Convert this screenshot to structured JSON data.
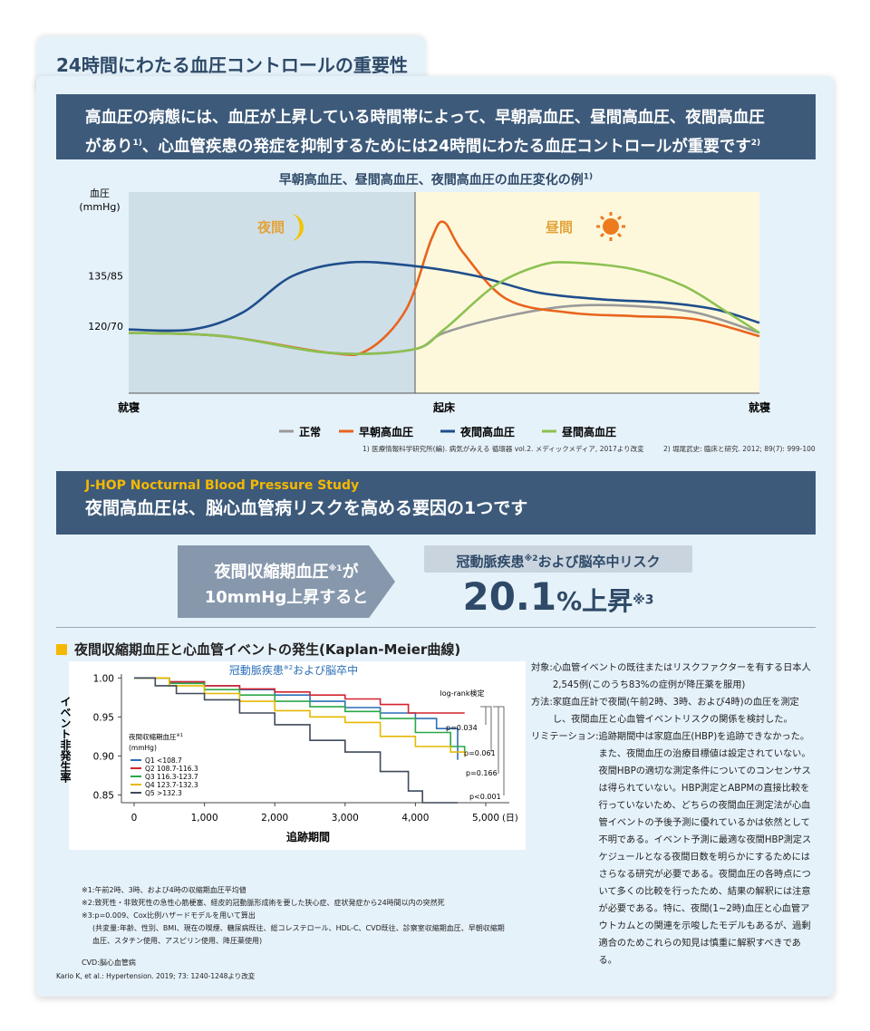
{
  "header": {
    "tab_title": "24時間にわたる血圧コントロールの重要性",
    "banner_line1": "高血圧の病態には、血圧が上昇している時間帯によって、早朝高血圧、昼間高血圧、夜間高血圧",
    "banner_line2_a": "があり",
    "banner_ref1": "1)",
    "banner_line2_b": "、心血管疾患の発症を抑制するためには24時間にわたる血圧コントロールが重要です",
    "banner_ref2": "2)"
  },
  "bp_chart": {
    "title": "早朝高血圧、昼間高血圧、夜間高血圧の血圧変化の例",
    "title_ref": "1)",
    "ylabel_line1": "血圧",
    "ylabel_line2": "(mmHg)",
    "night_label": "夜間",
    "day_label": "昼間",
    "footnote1": "1) 医療情報科学研究所(編). 病気がみえる 循環器 vol.2. メディックメディア, 2017より改変",
    "footnote2": "2) 堀尾武史: 臨床と研究. 2012; 89(7): 999-1002"
  },
  "study": {
    "subtitle": "J-HOP Nocturnal Blood Pressure Study",
    "title": "夜間高血圧は、脳心血管病リスクを高める要因の1つです",
    "arrow_line1": "夜間収縮期血圧",
    "arrow_ref": "※1",
    "arrow_line1_tail": "が",
    "arrow_line2": "10mmHg上昇すると",
    "risk_label_a": "冠動脈疾患",
    "risk_ref": "※2",
    "risk_label_b": "および脳卒中リスク",
    "risk_number": "20.1",
    "risk_suffix": "%上昇",
    "risk_suffix_ref": "※3"
  },
  "km": {
    "heading": "夜間収縮期血圧と心血管イベントの発生(Kaplan-Meier曲線)",
    "inner_title": "冠動脈疾患",
    "inner_title_ref": "※2",
    "inner_title_tail": "および脳卒中",
    "ylabel": "イベント非発生率",
    "xlabel": "追跡期間",
    "x_unit": "(日)",
    "logrank": "log-rank検定",
    "legend_title": "夜間収縮期血圧",
    "legend_title_ref": "※1",
    "legend_unit": "(mmHg)"
  },
  "description": {
    "rows": [
      {
        "label": "対象:",
        "text": "心血管イベントの既往またはリスクファクターを有する日本人2,545例(このうち83%の症例が降圧薬を服用)"
      },
      {
        "label": "方法:",
        "text": "家庭血圧計で夜間(午前2時、3時、および4時)の血圧を測定し、夜間血圧と心血管イベントリスクの関係を検討した。"
      },
      {
        "label": "リミテーション:",
        "text": "追跡期間中は家庭血圧(HBP)を追跡できなかった。また、夜間血圧の治療目標値は設定されていない。夜間HBPの適切な測定条件についてのコンセンサスは得られていない。HBP測定とABPMの直接比較を行っていないため、どちらの夜間血圧測定法が心血管イベントの予後予測に優れているかは依然として不明である。イベント予測に最適な夜間HBP測定スケジュールとなる夜間日数を明らかにするためにはさらなる研究が必要である。夜間血圧の各時点について多くの比較を行ったため、結果の解釈には注意が必要である。特に、夜間(1~2時)血圧と心血管アウトカムとの関連を示唆したモデルもあるが、過剰適合のためこれらの知見は慎重に解釈すべきである。"
      }
    ]
  },
  "notes": {
    "n1": "※1:午前2時、3時、および4時の収縮期血圧平均値",
    "n2": "※2:致死性・非致死性の急性心筋梗塞、経皮的冠動脈形成術を要した狭心症、症状発症から24時間以内の突然死",
    "n3": "※3:p=0.009、Cox比例ハザードモデルを用いて算出",
    "n3b": "(共変量:年齢、性別、BMI、現在の喫煙、糖尿病既往、総コレステロール、HDL-C、CVD既往、診察室収縮期血圧、早朝収縮期",
    "n3c": "血圧、スタチン使用、アスピリン使用、降圧薬使用)",
    "cvd": "CVD:脳心血管病",
    "citation": "Kario K, et al.: Hypertension. 2019; 73: 1240-1248より改変"
  },
  "chart_data": [
    {
      "type": "line",
      "title": "早朝高血圧、昼間高血圧、夜間高血圧の血圧変化の例",
      "ylabel": "血圧 (mmHg)",
      "y_ticks": [
        "135/85",
        "120/70"
      ],
      "x_ticks": [
        "就寝",
        "起床",
        "就寝"
      ],
      "x_domain": [
        0,
        1
      ],
      "y_domain": [
        100,
        160
      ],
      "colors": {
        "正常": "#9a9a9a",
        "早朝高血圧": "#e8641e",
        "夜間高血圧": "#1f4e8c",
        "昼間高血圧": "#8cc152"
      },
      "series": [
        {
          "name": "正常",
          "points": [
            [
              0,
              118
            ],
            [
              0.15,
              117
            ],
            [
              0.32,
              112
            ],
            [
              0.45,
              113
            ],
            [
              0.5,
              118
            ],
            [
              0.6,
              123
            ],
            [
              0.7,
              126
            ],
            [
              0.8,
              126
            ],
            [
              0.9,
              124
            ],
            [
              1,
              118
            ]
          ]
        },
        {
          "name": "早朝高血圧",
          "points": [
            [
              0,
              118
            ],
            [
              0.15,
              117
            ],
            [
              0.32,
              112
            ],
            [
              0.38,
              113
            ],
            [
              0.44,
              125
            ],
            [
              0.48,
              146
            ],
            [
              0.5,
              151
            ],
            [
              0.53,
              142
            ],
            [
              0.6,
              128
            ],
            [
              0.7,
              124
            ],
            [
              0.8,
              123
            ],
            [
              0.9,
              122
            ],
            [
              1,
              117
            ]
          ]
        },
        {
          "name": "夜間高血圧",
          "points": [
            [
              0,
              119
            ],
            [
              0.1,
              119
            ],
            [
              0.18,
              124
            ],
            [
              0.26,
              135
            ],
            [
              0.35,
              139
            ],
            [
              0.45,
              138
            ],
            [
              0.55,
              135
            ],
            [
              0.65,
              130
            ],
            [
              0.75,
              128
            ],
            [
              0.85,
              127
            ],
            [
              0.93,
              125
            ],
            [
              1,
              121
            ]
          ]
        },
        {
          "name": "昼間高血圧",
          "points": [
            [
              0,
              118
            ],
            [
              0.15,
              117
            ],
            [
              0.32,
              112
            ],
            [
              0.45,
              113
            ],
            [
              0.5,
              119
            ],
            [
              0.58,
              132
            ],
            [
              0.65,
              138
            ],
            [
              0.7,
              139
            ],
            [
              0.8,
              137
            ],
            [
              0.88,
              132
            ],
            [
              0.95,
              124
            ],
            [
              1,
              118
            ]
          ]
        }
      ]
    },
    {
      "type": "line",
      "title": "冠動脈疾患および脳卒中",
      "xlabel": "追跡期間",
      "ylabel": "イベント非発生率",
      "x_ticks": [
        0,
        1000,
        2000,
        3000,
        4000,
        5000
      ],
      "y_ticks": [
        0.85,
        0.9,
        0.95,
        1.0
      ],
      "xlim": [
        0,
        5000
      ],
      "ylim": [
        0.84,
        1.005
      ],
      "p_values": [
        "p=0.034",
        "p=0.061",
        "p=0.166",
        "p<0.001"
      ],
      "colors": {
        "Q1 <108.7": "#2c6fb7",
        "Q2 108.7-116.3": "#d3232f",
        "Q3 116.3-123.7": "#2aa84a",
        "Q4 123.7-132.3": "#e6b800",
        "Q5 >132.3": "#3f4a5a"
      },
      "series": [
        {
          "name": "Q1 <108.7",
          "points": [
            [
              0,
              1
            ],
            [
              500,
              0.995
            ],
            [
              1000,
              0.99
            ],
            [
              1500,
              0.985
            ],
            [
              2000,
              0.978
            ],
            [
              2500,
              0.97
            ],
            [
              3000,
              0.962
            ],
            [
              3500,
              0.955
            ],
            [
              4000,
              0.948
            ],
            [
              4300,
              0.935
            ],
            [
              4600,
              0.895
            ]
          ]
        },
        {
          "name": "Q2 108.7-116.3",
          "points": [
            [
              0,
              1
            ],
            [
              500,
              0.995
            ],
            [
              1000,
              0.99
            ],
            [
              1500,
              0.986
            ],
            [
              2000,
              0.982
            ],
            [
              2500,
              0.978
            ],
            [
              3000,
              0.973
            ],
            [
              3500,
              0.966
            ],
            [
              3900,
              0.955
            ],
            [
              4700,
              0.955
            ]
          ]
        },
        {
          "name": "Q3 116.3-123.7",
          "points": [
            [
              0,
              1
            ],
            [
              500,
              0.993
            ],
            [
              1000,
              0.985
            ],
            [
              1500,
              0.978
            ],
            [
              2000,
              0.97
            ],
            [
              2500,
              0.963
            ],
            [
              3000,
              0.957
            ],
            [
              3500,
              0.948
            ],
            [
              4000,
              0.93
            ],
            [
              4500,
              0.912
            ],
            [
              4700,
              0.905
            ]
          ]
        },
        {
          "name": "Q4 123.7-132.3",
          "points": [
            [
              0,
              1
            ],
            [
              500,
              0.99
            ],
            [
              1000,
              0.98
            ],
            [
              1500,
              0.97
            ],
            [
              2000,
              0.958
            ],
            [
              2500,
              0.95
            ],
            [
              3000,
              0.943
            ],
            [
              3500,
              0.925
            ],
            [
              4000,
              0.912
            ],
            [
              4500,
              0.905
            ],
            [
              4700,
              0.9
            ]
          ]
        },
        {
          "name": "Q5 >132.3",
          "points": [
            [
              0,
              1
            ],
            [
              300,
              0.99
            ],
            [
              600,
              0.98
            ],
            [
              1000,
              0.972
            ],
            [
              1500,
              0.955
            ],
            [
              2000,
              0.94
            ],
            [
              2500,
              0.92
            ],
            [
              3000,
              0.905
            ],
            [
              3500,
              0.88
            ],
            [
              3900,
              0.855
            ],
            [
              4100,
              0.84
            ],
            [
              4600,
              0.84
            ]
          ]
        }
      ]
    }
  ]
}
